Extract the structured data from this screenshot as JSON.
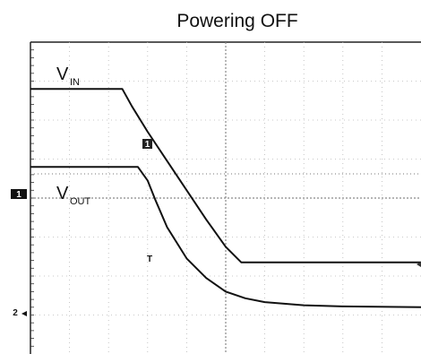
{
  "chart_data": {
    "type": "line",
    "title": "Powering OFF",
    "xlabel": "",
    "ylabel": "",
    "grid": true,
    "xlim": [
      0,
      10
    ],
    "ylim": [
      0,
      8
    ],
    "grid_divisions": {
      "x": 10,
      "y": 8
    },
    "series": [
      {
        "name": "VIN",
        "label_main": "V",
        "label_sub": "IN",
        "color": "#111111",
        "x": [
          0,
          2.35,
          2.6,
          3.0,
          3.5,
          4.0,
          4.5,
          5.0,
          5.4,
          10
        ],
        "y": [
          6.8,
          6.8,
          6.35,
          5.7,
          4.95,
          4.2,
          3.45,
          2.75,
          2.35,
          2.35
        ]
      },
      {
        "name": "VOUT",
        "label_main": "V",
        "label_sub": "OUT",
        "color": "#111111",
        "x": [
          0,
          2.75,
          3.0,
          3.2,
          3.5,
          4.0,
          4.5,
          5.0,
          5.5,
          6.0,
          7.0,
          8.0,
          10
        ],
        "y": [
          4.8,
          4.8,
          4.45,
          3.95,
          3.25,
          2.45,
          1.95,
          1.6,
          1.43,
          1.33,
          1.25,
          1.22,
          1.2
        ]
      }
    ],
    "markers": {
      "ch1_ground": "1",
      "ch2_ground": "2",
      "trace_1_tag": "1",
      "trace_2_tag": "T"
    },
    "ch1_ground_level": 4.62,
    "ch2_ground_level": 1.2
  }
}
